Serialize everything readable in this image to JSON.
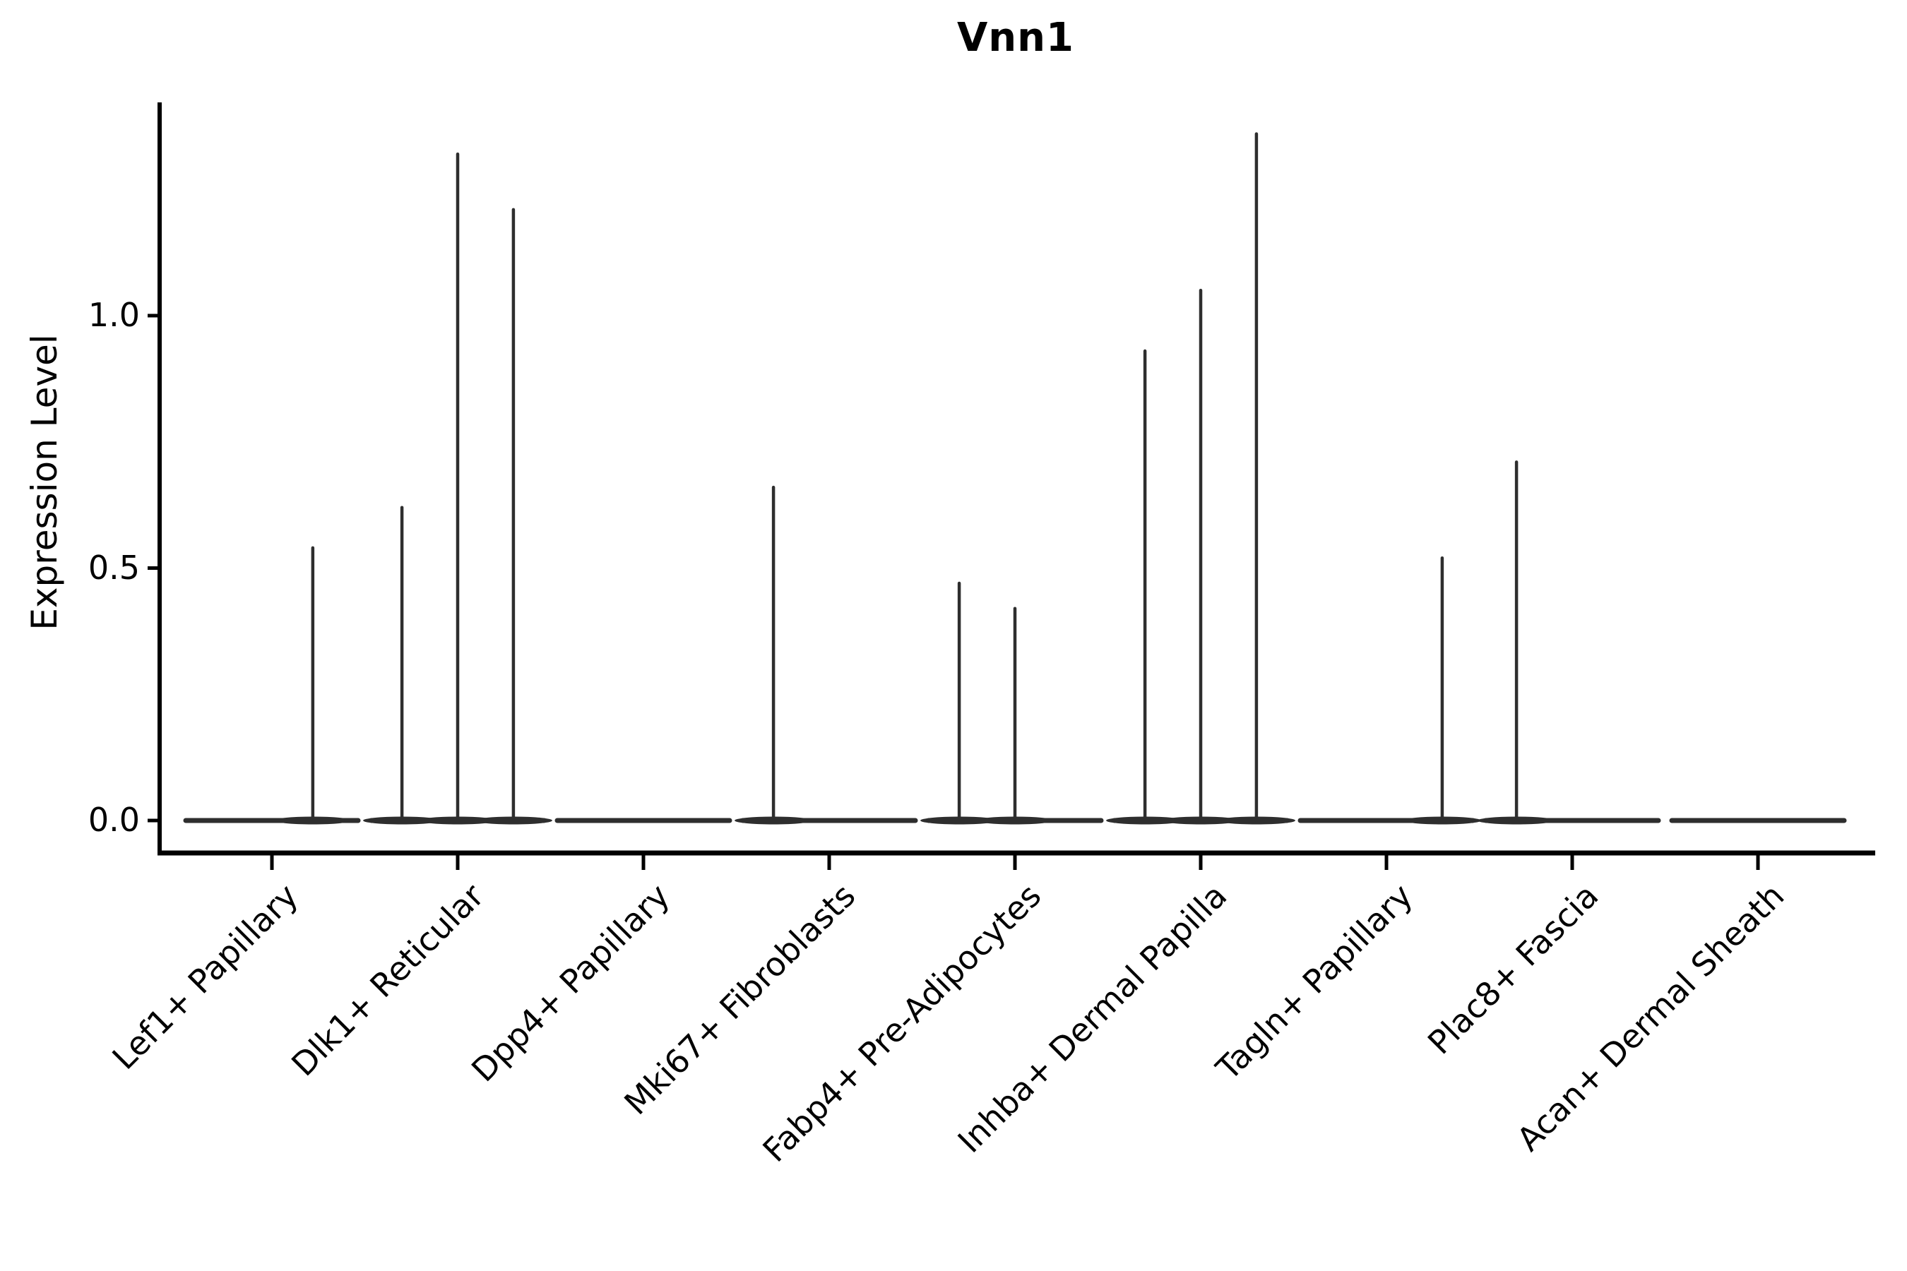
{
  "chart_data": {
    "type": "violin",
    "title": "Vnn1",
    "xlabel": "",
    "ylabel": "Expression Level",
    "yticks": [
      {
        "label": "0.0",
        "value": 0.0
      },
      {
        "label": "0.5",
        "value": 0.5
      },
      {
        "label": "1.0",
        "value": 1.0
      }
    ],
    "ylim": [
      -0.06,
      1.42
    ],
    "grid": false,
    "legend": "none",
    "violin_width": 0.9,
    "categories": [
      "Lef1+ Papillary",
      "Dlk1+ Reticular",
      "Dpp4+ Papillary",
      "Mki67+ Fibroblasts",
      "Fabp4+ Pre-Adipocytes",
      "Inhba+ Dermal Papilla",
      "Tagln+ Papillary",
      "Plac8+ Fascia",
      "Acan+ Dermal Sheath"
    ],
    "series": [
      {
        "category": "Lef1+ Papillary",
        "baseline_value": 0.0,
        "spikes": [
          {
            "offset": 0.22,
            "value": 0.54
          }
        ]
      },
      {
        "category": "Dlk1+ Reticular",
        "baseline_value": 0.0,
        "spikes": [
          {
            "offset": -0.3,
            "value": 0.62
          },
          {
            "offset": 0.0,
            "value": 1.32
          },
          {
            "offset": 0.3,
            "value": 1.21
          }
        ]
      },
      {
        "category": "Dpp4+ Papillary",
        "baseline_value": 0.0,
        "spikes": []
      },
      {
        "category": "Mki67+ Fibroblasts",
        "baseline_value": 0.0,
        "spikes": [
          {
            "offset": -0.3,
            "value": 0.66
          }
        ]
      },
      {
        "category": "Fabp4+ Pre-Adipocytes",
        "baseline_value": 0.0,
        "spikes": [
          {
            "offset": -0.3,
            "value": 0.47
          },
          {
            "offset": 0.0,
            "value": 0.42
          }
        ]
      },
      {
        "category": "Inhba+ Dermal Papilla",
        "baseline_value": 0.0,
        "spikes": [
          {
            "offset": -0.3,
            "value": 0.93
          },
          {
            "offset": 0.0,
            "value": 1.05
          },
          {
            "offset": 0.3,
            "value": 1.36
          }
        ]
      },
      {
        "category": "Tagln+ Papillary",
        "baseline_value": 0.0,
        "spikes": [
          {
            "offset": 0.3,
            "value": 0.52
          }
        ]
      },
      {
        "category": "Plac8+ Fascia",
        "baseline_value": 0.0,
        "spikes": [
          {
            "offset": -0.3,
            "value": 0.71
          }
        ]
      },
      {
        "category": "Acan+ Dermal Sheath",
        "baseline_value": 0.0,
        "spikes": []
      }
    ],
    "colors": {
      "violin_stroke": "#2e2e2e",
      "axis": "#000000",
      "text": "#000000",
      "background": "#ffffff"
    }
  }
}
